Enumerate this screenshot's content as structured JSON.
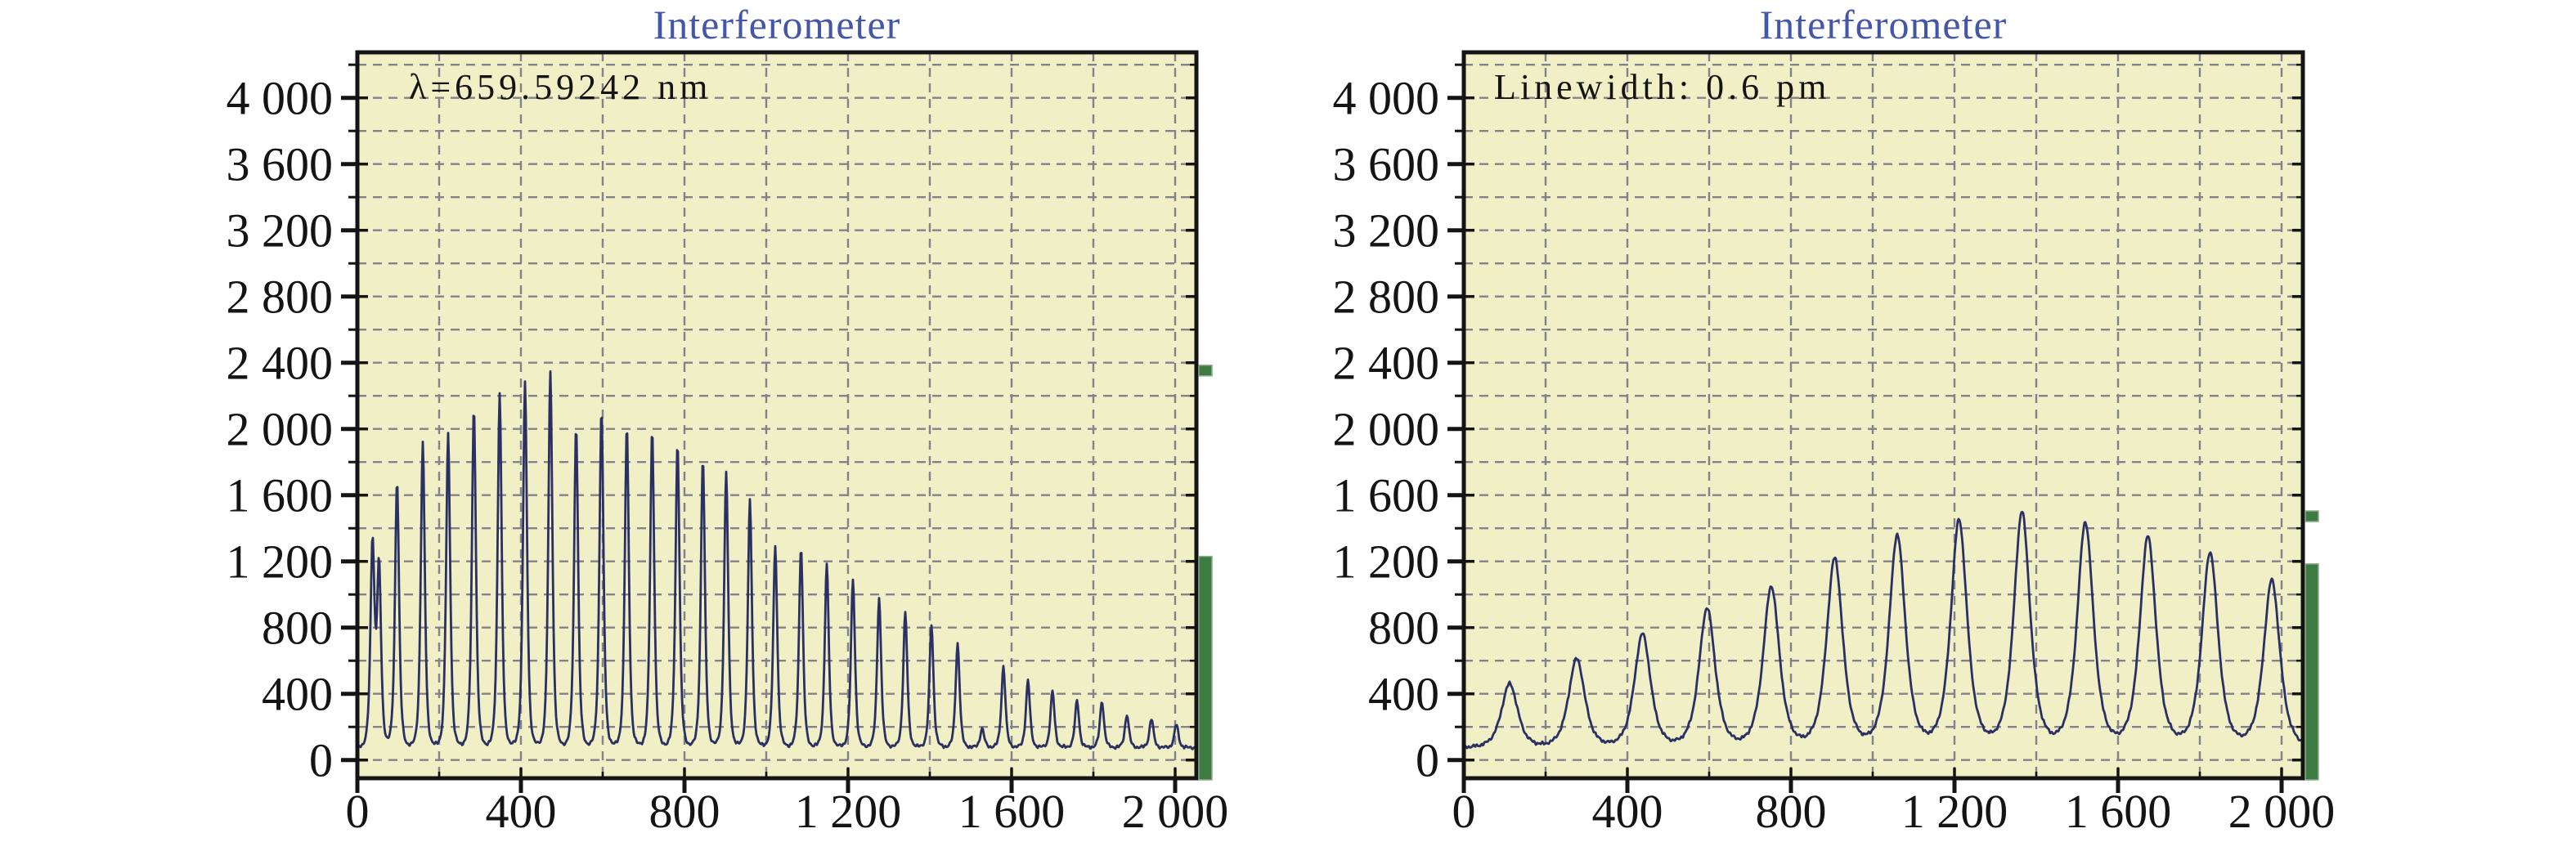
{
  "figure": {
    "background": "#ffffff",
    "title_color": "#4456aa",
    "text_color": "#141414",
    "frame_color": "#141414"
  },
  "chart_data": [
    {
      "type": "line",
      "panel": "left",
      "title": "Interferometer",
      "annotation": "λ=659.59242 nm",
      "xlabel": "",
      "ylabel": "",
      "xlim": [
        0,
        2052
      ],
      "ylim": [
        -110,
        4275
      ],
      "grid": "dashed",
      "grid_interval": 200,
      "minor_tick_interval": 200,
      "x_major_ticks": [
        0,
        400,
        800,
        1200,
        1600,
        2000
      ],
      "x_tick_labels": [
        "0",
        "400",
        "800",
        "1 200",
        "1 600",
        "2 000"
      ],
      "y_major_ticks": [
        0,
        400,
        800,
        1200,
        1600,
        2000,
        2400,
        2800,
        3200,
        3600,
        4000
      ],
      "y_tick_labels": [
        "0",
        "400",
        "800",
        "1 200",
        "1 600",
        "2 000",
        "2 400",
        "2 800",
        "3 200",
        "3 600",
        "4 000"
      ],
      "plot_bg": "#f0efc6",
      "grid_color": "#82828a",
      "line_color": "#2b3063",
      "exposure_color": "#3e7b42",
      "baseline": 75,
      "peak_halfwidth": 9,
      "peak_shape_power": 2.0,
      "peaks": [
        {
          "x": 37,
          "value": 1300
        },
        {
          "x": 53,
          "value": 1150
        },
        {
          "x": 97,
          "value": 1690
        },
        {
          "x": 160,
          "value": 1915
        },
        {
          "x": 222,
          "value": 1965
        },
        {
          "x": 285,
          "value": 2130
        },
        {
          "x": 348,
          "value": 2215
        },
        {
          "x": 410,
          "value": 2275
        },
        {
          "x": 472,
          "value": 2340
        },
        {
          "x": 535,
          "value": 2020
        },
        {
          "x": 597,
          "value": 2115
        },
        {
          "x": 659,
          "value": 2010
        },
        {
          "x": 721,
          "value": 1990
        },
        {
          "x": 783,
          "value": 1915
        },
        {
          "x": 845,
          "value": 1820
        },
        {
          "x": 902,
          "value": 1735
        },
        {
          "x": 960,
          "value": 1565
        },
        {
          "x": 1022,
          "value": 1290
        },
        {
          "x": 1085,
          "value": 1285
        },
        {
          "x": 1148,
          "value": 1180
        },
        {
          "x": 1212,
          "value": 1090
        },
        {
          "x": 1276,
          "value": 980
        },
        {
          "x": 1340,
          "value": 890
        },
        {
          "x": 1404,
          "value": 815
        },
        {
          "x": 1468,
          "value": 705
        },
        {
          "x": 1528,
          "value": 190
        },
        {
          "x": 1580,
          "value": 565
        },
        {
          "x": 1640,
          "value": 480
        },
        {
          "x": 1700,
          "value": 415
        },
        {
          "x": 1760,
          "value": 360
        },
        {
          "x": 1821,
          "value": 355
        },
        {
          "x": 1882,
          "value": 275
        },
        {
          "x": 1942,
          "value": 250
        },
        {
          "x": 2003,
          "value": 215
        }
      ],
      "exposure_marker_value": 2355,
      "exposure_bar_value": 1230
    },
    {
      "type": "line",
      "panel": "right",
      "title": "Interferometer",
      "annotation": "Linewidth: 0.6 pm",
      "xlabel": "",
      "ylabel": "",
      "xlim": [
        0,
        2052
      ],
      "ylim": [
        -110,
        4275
      ],
      "grid": "dashed",
      "grid_interval": 200,
      "minor_tick_interval": 200,
      "x_major_ticks": [
        0,
        400,
        800,
        1200,
        1600,
        2000
      ],
      "x_tick_labels": [
        "0",
        "400",
        "800",
        "1 200",
        "1 600",
        "2 000"
      ],
      "y_major_ticks": [
        0,
        400,
        800,
        1200,
        1600,
        2000,
        2400,
        2800,
        3200,
        3600,
        4000
      ],
      "y_tick_labels": [
        "0",
        "400",
        "800",
        "1 200",
        "1 600",
        "2 000",
        "2 400",
        "2 800",
        "3 200",
        "3 600",
        "4 000"
      ],
      "plot_bg": "#f0efc6",
      "grid_color": "#82828a",
      "line_color": "#2b3063",
      "exposure_color": "#3e7b42",
      "baseline": 75,
      "peak_halfwidth": 36,
      "peak_shape_power": 2.0,
      "peaks": [
        {
          "x": 112,
          "value": 460
        },
        {
          "x": 276,
          "value": 610
        },
        {
          "x": 437,
          "value": 760
        },
        {
          "x": 595,
          "value": 915
        },
        {
          "x": 752,
          "value": 1045
        },
        {
          "x": 907,
          "value": 1215
        },
        {
          "x": 1060,
          "value": 1355
        },
        {
          "x": 1211,
          "value": 1445
        },
        {
          "x": 1365,
          "value": 1495
        },
        {
          "x": 1520,
          "value": 1430
        },
        {
          "x": 1673,
          "value": 1345
        },
        {
          "x": 1825,
          "value": 1250
        },
        {
          "x": 1976,
          "value": 1085
        }
      ],
      "exposure_marker_value": 1475,
      "exposure_bar_value": 1185
    }
  ]
}
